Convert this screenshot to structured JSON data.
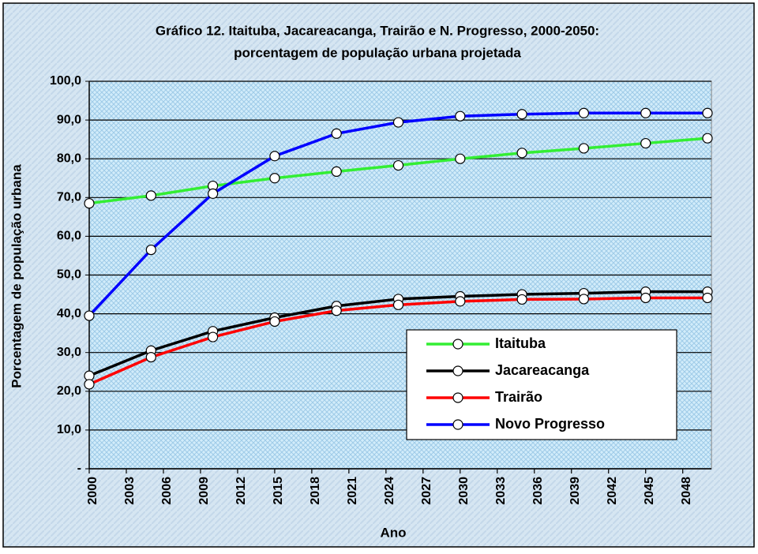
{
  "chart_data": {
    "type": "line",
    "title": [
      "Gráfico 12. Itaituba, Jacareacanga, Trairão e N. Progresso, 2000-2050:",
      "porcentagem de população urbana projetada"
    ],
    "x_label": "Ano",
    "y_label": "Porcentagem de população urbana",
    "x": [
      2000,
      2005,
      2010,
      2015,
      2020,
      2025,
      2030,
      2035,
      2040,
      2045,
      2050
    ],
    "series": [
      {
        "name": "Itaituba",
        "color": "#33ee33",
        "values": [
          68.5,
          70.5,
          73.0,
          75.0,
          76.7,
          78.3,
          80.0,
          81.5,
          82.7,
          84.0,
          85.3
        ]
      },
      {
        "name": "Jacareacanga",
        "color": "#000000",
        "values": [
          24.0,
          30.5,
          35.5,
          39.0,
          42.0,
          43.8,
          44.5,
          45.0,
          45.3,
          45.7,
          45.7
        ]
      },
      {
        "name": "Trairão",
        "color": "#ff0000",
        "values": [
          21.8,
          28.8,
          34.0,
          38.0,
          40.8,
          42.3,
          43.2,
          43.7,
          43.8,
          44.1,
          44.1
        ]
      },
      {
        "name": "Novo Progresso",
        "color": "#0000ff",
        "values": [
          39.5,
          56.5,
          71.0,
          80.7,
          86.5,
          89.4,
          91.0,
          91.5,
          91.8,
          91.8,
          91.8
        ]
      }
    ],
    "xlim": [
      2000,
      2050
    ],
    "xticks": [
      2000,
      2003,
      2006,
      2009,
      2012,
      2015,
      2018,
      2021,
      2024,
      2027,
      2030,
      2033,
      2036,
      2039,
      2042,
      2045,
      2048
    ],
    "ylim": [
      0,
      100
    ],
    "yticks": [
      {
        "value": 0,
        "label": "-"
      },
      {
        "value": 10,
        "label": "10,0"
      },
      {
        "value": 20,
        "label": "20,0"
      },
      {
        "value": 30,
        "label": "30,0"
      },
      {
        "value": 40,
        "label": "40,0"
      },
      {
        "value": 50,
        "label": "50,0"
      },
      {
        "value": 60,
        "label": "60,0"
      },
      {
        "value": 70,
        "label": "70,0"
      },
      {
        "value": 80,
        "label": "80,0"
      },
      {
        "value": 90,
        "label": "90,0"
      },
      {
        "value": 100,
        "label": "100,0"
      }
    ],
    "grid": true,
    "legend": "lower right"
  }
}
